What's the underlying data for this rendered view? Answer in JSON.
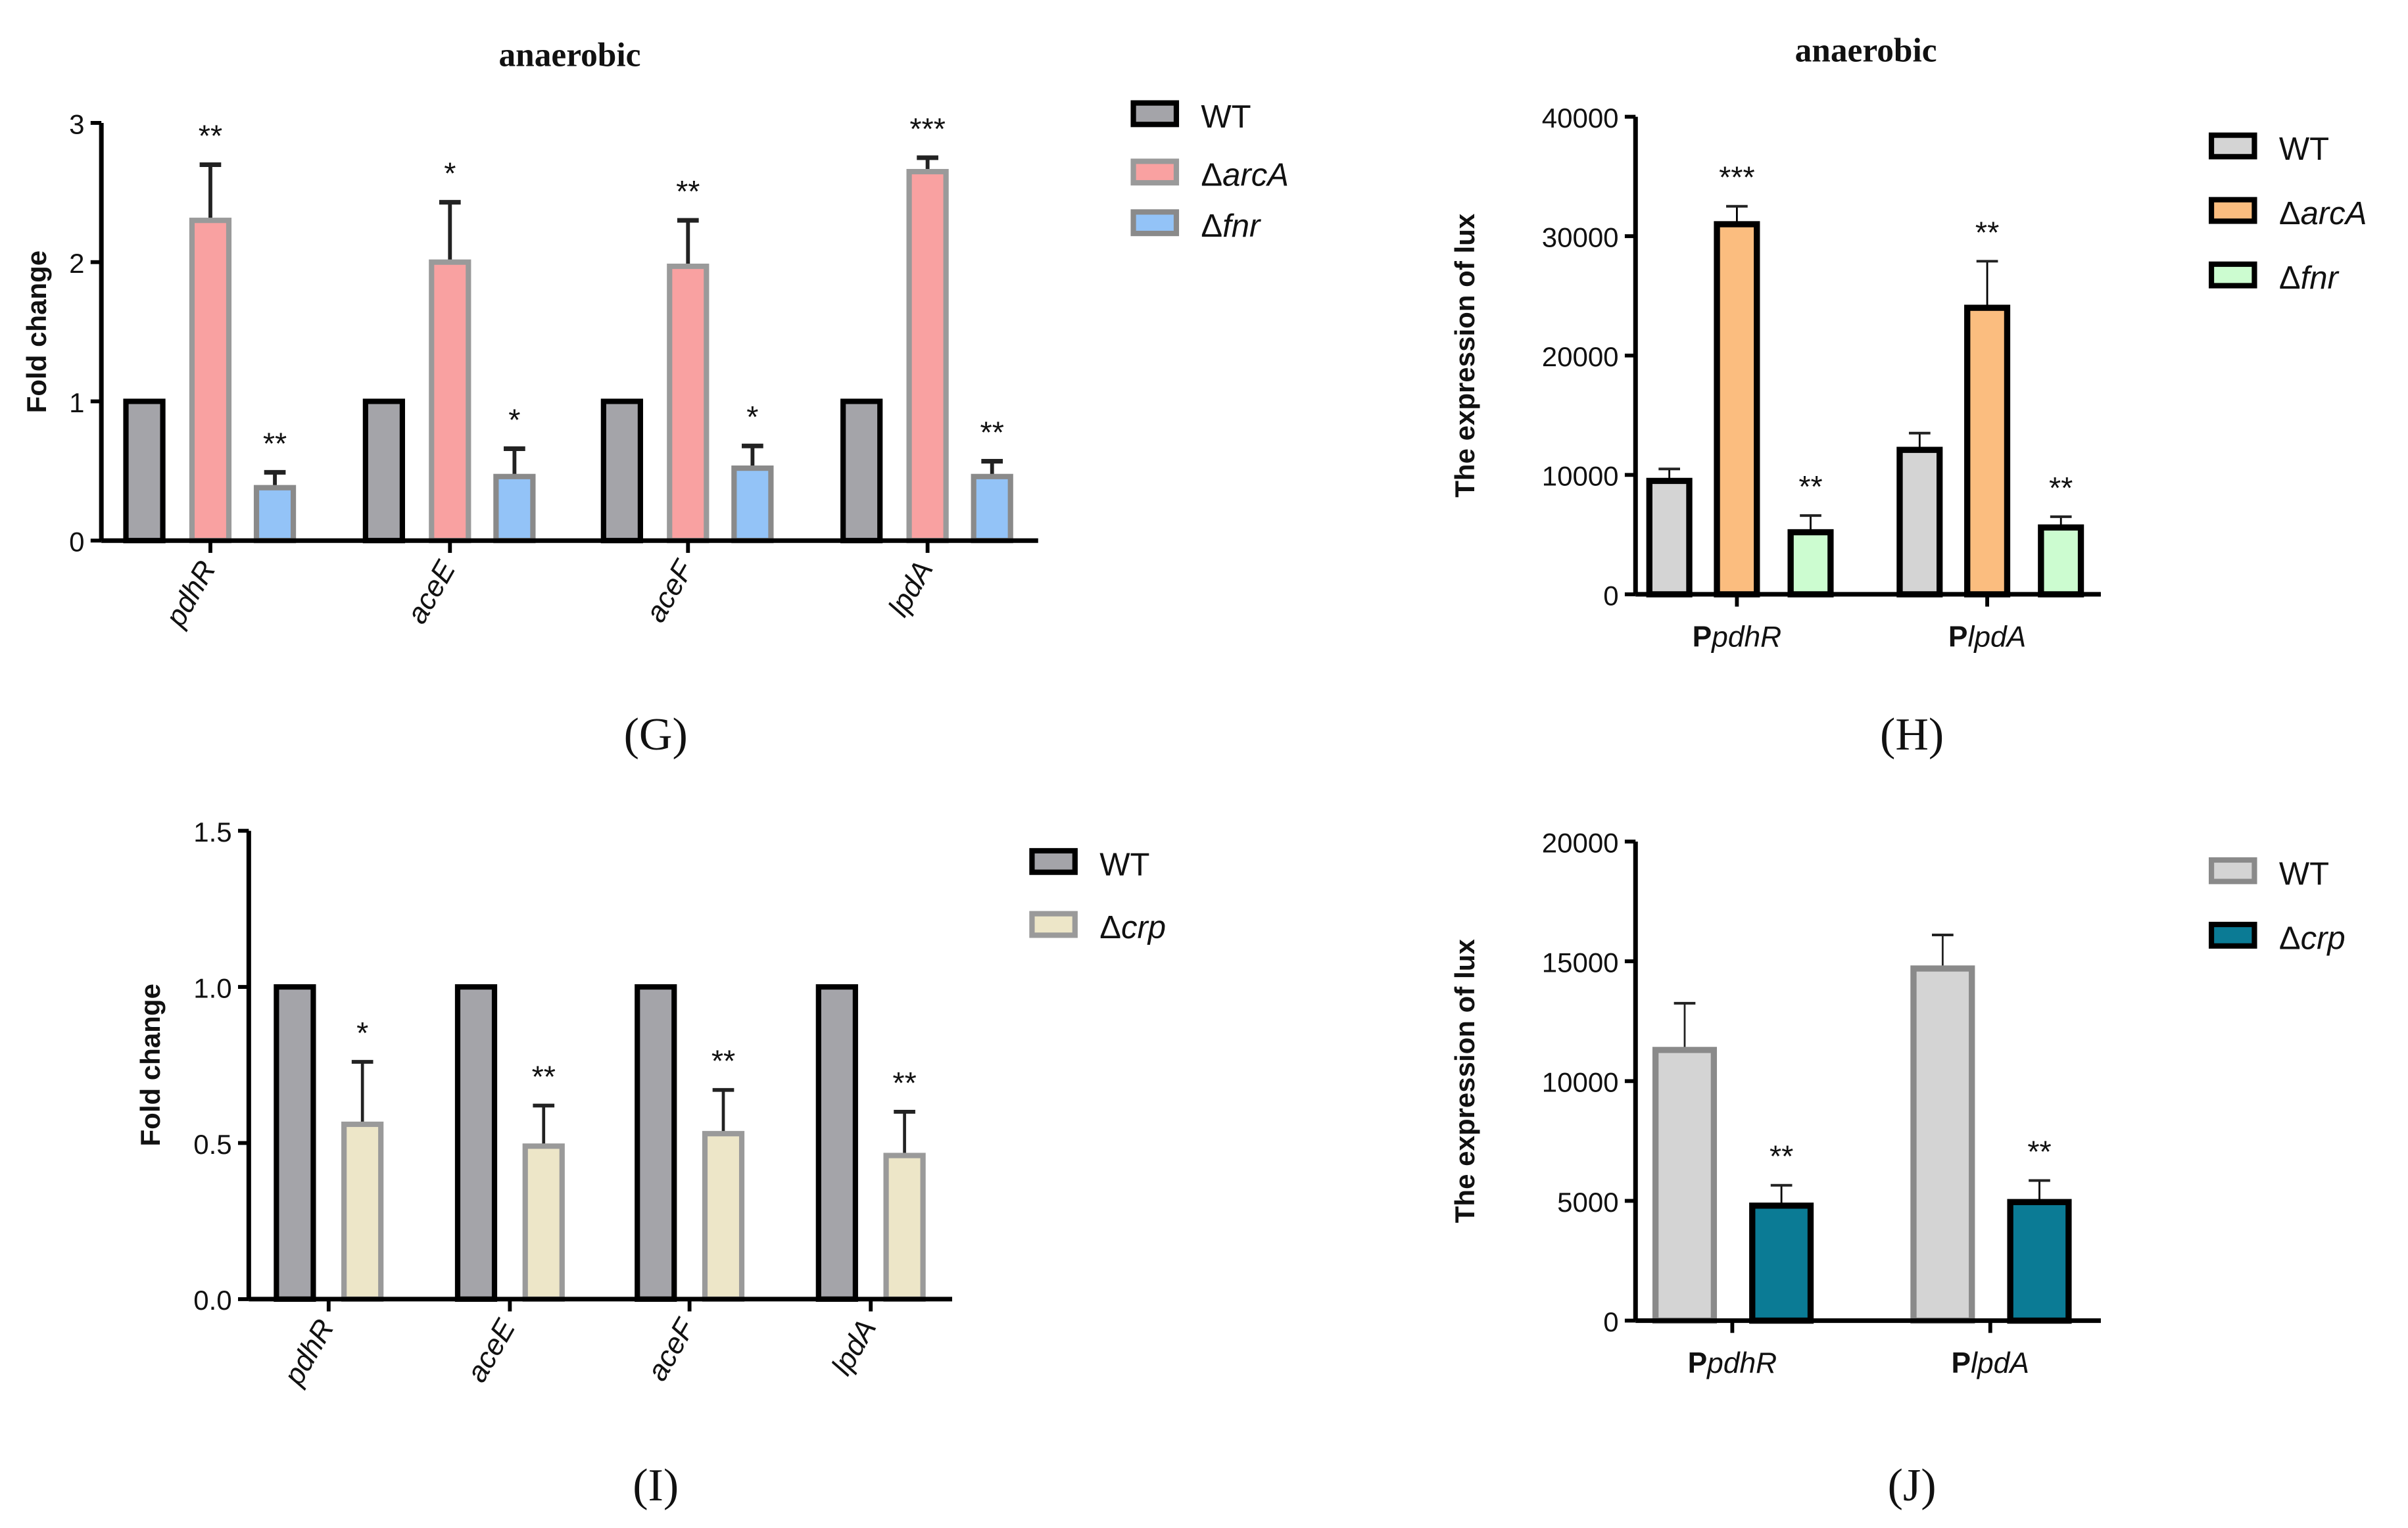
{
  "chart_data": [
    {
      "id": "G",
      "type": "bar",
      "panel_label": "(G)",
      "title": "anaerobic",
      "ylabel": "Fold change",
      "xlabel": "",
      "ylim": [
        0,
        3
      ],
      "yticks": [
        0,
        1,
        2,
        3
      ],
      "ytick_labels": [
        "0",
        "1",
        "2",
        "3"
      ],
      "categories": [
        "pdhR",
        "aceE",
        "aceF",
        "lpdA"
      ],
      "legend_position": "right",
      "series": [
        {
          "name": "WT",
          "color": "#a4a4a9",
          "edge": "#000000",
          "values": [
            1,
            1,
            1,
            1
          ],
          "errors": [
            0,
            0,
            0,
            0
          ],
          "significance": [
            "",
            "",
            "",
            ""
          ]
        },
        {
          "name": "ΔarcA",
          "color": "#f9a1a1",
          "edge": "#9a9a9a",
          "values": [
            2.3,
            2.0,
            1.97,
            2.65
          ],
          "errors": [
            0.4,
            0.43,
            0.33,
            0.1
          ],
          "significance": [
            "**",
            "*",
            "**",
            "***"
          ]
        },
        {
          "name": "Δfnr",
          "color": "#93c3f7",
          "edge": "#8a8a8a",
          "values": [
            0.38,
            0.46,
            0.52,
            0.46
          ],
          "errors": [
            0.11,
            0.2,
            0.16,
            0.11
          ],
          "significance": [
            "**",
            "*",
            "*",
            "**"
          ]
        }
      ]
    },
    {
      "id": "H",
      "type": "bar",
      "panel_label": "(H)",
      "title": "anaerobic",
      "ylabel": "The expression of lux",
      "xlabel": "",
      "ylim": [
        0,
        40000
      ],
      "yticks": [
        0,
        10000,
        20000,
        30000,
        40000
      ],
      "ytick_labels": [
        "0",
        "10000",
        "20000",
        "30000",
        "40000"
      ],
      "categories": [
        "PpdhR",
        "PlpdA"
      ],
      "legend_position": "right",
      "series": [
        {
          "name": "WT",
          "color": "#d4d4d4",
          "edge": "#000000",
          "values": [
            9500,
            12100
          ],
          "errors": [
            1000,
            1400
          ],
          "significance": [
            "",
            ""
          ]
        },
        {
          "name": "ΔarcA",
          "color": "#fbbd7f",
          "edge": "#000000",
          "values": [
            31000,
            24000
          ],
          "errors": [
            1500,
            3900
          ],
          "significance": [
            "***",
            "**"
          ]
        },
        {
          "name": "Δfnr",
          "color": "#ccfcd0",
          "edge": "#000000",
          "values": [
            5200,
            5600
          ],
          "errors": [
            1400,
            900
          ],
          "significance": [
            "**",
            "**"
          ]
        }
      ]
    },
    {
      "id": "I",
      "type": "bar",
      "panel_label": "(I)",
      "title": "",
      "ylabel": "Fold change",
      "xlabel": "",
      "ylim": [
        0,
        1.5
      ],
      "yticks": [
        0,
        0.5,
        1.0,
        1.5
      ],
      "ytick_labels": [
        "0.0",
        "0.5",
        "1.0",
        "1.5"
      ],
      "categories": [
        "pdhR",
        "aceE",
        "aceF",
        "lpdA"
      ],
      "legend_position": "right",
      "series": [
        {
          "name": "WT",
          "color": "#a4a4a9",
          "edge": "#000000",
          "values": [
            1,
            1,
            1,
            1
          ],
          "errors": [
            0,
            0,
            0,
            0
          ],
          "significance": [
            "",
            "",
            "",
            ""
          ]
        },
        {
          "name": "Δcrp",
          "color": "#ede6c8",
          "edge": "#9a9a9a",
          "values": [
            0.56,
            0.49,
            0.53,
            0.46
          ],
          "errors": [
            0.2,
            0.13,
            0.14,
            0.14
          ],
          "significance": [
            "*",
            "**",
            "**",
            "**"
          ]
        }
      ]
    },
    {
      "id": "J",
      "type": "bar",
      "panel_label": "(J)",
      "title": "",
      "ylabel": "The expression of lux",
      "xlabel": "",
      "ylim": [
        0,
        20000
      ],
      "yticks": [
        0,
        5000,
        10000,
        15000,
        20000
      ],
      "ytick_labels": [
        "0",
        "5000",
        "10000",
        "15000",
        "20000"
      ],
      "categories": [
        "PpdhR",
        "PlpdA"
      ],
      "legend_position": "right",
      "series": [
        {
          "name": "WT",
          "color": "#d4d4d4",
          "edge": "#8a8a8a",
          "values": [
            11300,
            14700
          ],
          "errors": [
            1950,
            1400
          ],
          "significance": [
            "",
            ""
          ]
        },
        {
          "name": "Δcrp",
          "color": "#0b7b95",
          "edge": "#000000",
          "values": [
            4800,
            4950
          ],
          "errors": [
            850,
            900
          ],
          "significance": [
            "**",
            "**"
          ]
        }
      ]
    }
  ]
}
